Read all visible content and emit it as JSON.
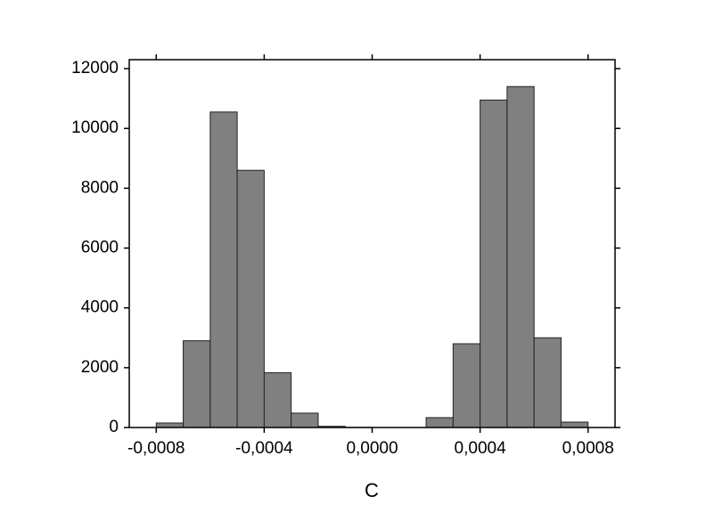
{
  "chart_data": {
    "type": "histogram",
    "x_label": "C",
    "bins": [
      -0.0008,
      -0.0007,
      -0.0006,
      -0.0005,
      -0.0004,
      -0.0003,
      -0.0002,
      -0.0001,
      0,
      0.0001,
      0.0002,
      0.0003,
      0.0004,
      0.0005,
      0.0006,
      0.0007,
      0.0008
    ],
    "values": [
      150,
      2900,
      10550,
      8600,
      1830,
      480,
      40,
      5,
      0,
      0,
      330,
      2800,
      10950,
      11400,
      3000,
      180
    ],
    "color": "#808080",
    "xlim": [
      -0.0009,
      0.0009
    ],
    "xticks": [
      {
        "value": -0.0008,
        "label": "-0,0008"
      },
      {
        "value": -0.0004,
        "label": "-0,0004"
      },
      {
        "value": 0,
        "label": "0,0000"
      },
      {
        "value": 0.0004,
        "label": "0,0004"
      },
      {
        "value": 0.0008,
        "label": "0,0008"
      }
    ],
    "ylim": [
      0,
      12300
    ],
    "yticks": [
      0,
      2000,
      4000,
      6000,
      8000,
      10000,
      12000
    ]
  }
}
